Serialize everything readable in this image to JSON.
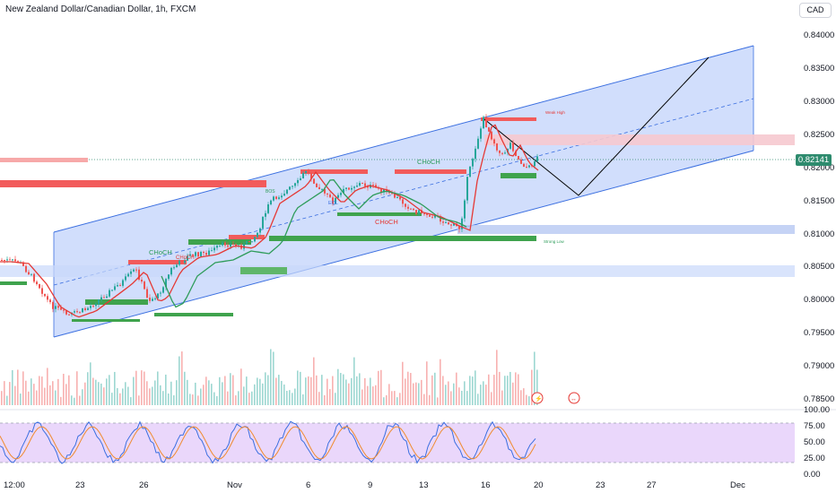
{
  "header": {
    "title": "New Zealand Dollar/Canadian Dollar, 1h, FXCM",
    "currency_button": "CAD"
  },
  "price_axis": {
    "labels": [
      "0.84000",
      "0.83500",
      "0.83000",
      "0.82500",
      "0.82000",
      "0.81500",
      "0.81000",
      "0.80500",
      "0.80000",
      "0.79500",
      "0.79000",
      "0.78500"
    ],
    "last_price": "0.82141"
  },
  "oscillator_axis": {
    "labels": [
      "100.00",
      "75.00",
      "50.00",
      "25.00",
      "0.00"
    ]
  },
  "time_axis": {
    "labels": [
      "12:00",
      "23",
      "26",
      "Nov",
      "6",
      "9",
      "13",
      "16",
      "20",
      "23",
      "27",
      "Dec"
    ]
  },
  "annotations": {
    "choch_labels": [
      "CHoCH",
      "CHoCH",
      "CHoCH",
      "CHoCH"
    ],
    "bos_label": "BOS",
    "eql_label": "EQL",
    "weak_high": "Weak High",
    "strong_low": "Strong Low"
  },
  "colors": {
    "channel_fill": "#c9d8fb",
    "channel_line": "#3b6fe0",
    "bull_zone": "#3fa34d",
    "bear_zone": "#f25b5b",
    "ema": "#e53935",
    "trend": "#2e9c5a",
    "stoch_bg": "#e9d5fb"
  }
}
